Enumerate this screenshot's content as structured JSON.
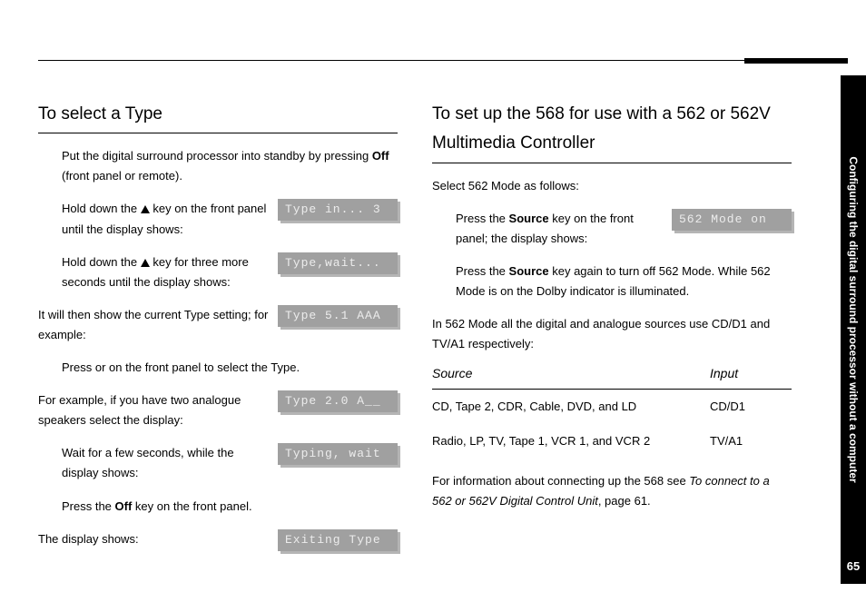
{
  "sidebar": {
    "chapter_label": "Configuring the digital surround processor without a computer",
    "page_number": "65"
  },
  "left": {
    "heading": "To select a Type",
    "p1_a": "Put the digital surround processor into standby by pressing ",
    "p1_b": "Off",
    "p1_c": " (front panel or remote).",
    "step1_a": "Hold down the ",
    "step1_b": " key on the front panel until the display shows:",
    "lcd1": "Type in... 3",
    "step2_a": "Hold down the ",
    "step2_b": " key for three more seconds until the display shows:",
    "lcd2": "Type,wait...",
    "p2": "It will then show the current Type setting; for example:",
    "lcd3": "Type 5.1 AAA",
    "p3": "Press     or     on the front panel to select the Type.",
    "p4": "For example, if you have two analogue speakers select the display:",
    "lcd4": "Type 2.0 A__",
    "step3": "Wait for a few seconds, while the display shows:",
    "lcd5": "Typing, wait",
    "step4_a": "Press the ",
    "step4_b": "Off",
    "step4_c": " key on the front panel.",
    "p5": "The display shows:",
    "lcd6": "Exiting Type"
  },
  "right": {
    "heading": "To set up the 568 for use with a 562 or 562V Multimedia Controller",
    "p1": "Select 562 Mode as follows:",
    "step1_a": "Press the ",
    "step1_b": "Source",
    "step1_c": " key on the front panel; the display shows:",
    "lcd1": "562 Mode on",
    "step2_a": "Press the ",
    "step2_b": "Source",
    "step2_c": " key again to turn off 562 Mode. While 562 Mode is on the Dolby indicator is illuminated.",
    "p2": "In 562 Mode all the digital and analogue sources use CD/D1 and TV/A1 respectively:",
    "table": {
      "head_source": "Source",
      "head_input": "Input",
      "rows": [
        {
          "source": "CD, Tape 2, CDR, Cable, DVD, and LD",
          "input": "CD/D1"
        },
        {
          "source": "Radio, LP, TV, Tape 1, VCR 1, and VCR 2",
          "input": "TV/A1"
        }
      ]
    },
    "p3_a": "For information about connecting up the 568 see ",
    "p3_b": "To connect to a 562 or 562V Digital Control Unit",
    "p3_c": ", page 61."
  }
}
